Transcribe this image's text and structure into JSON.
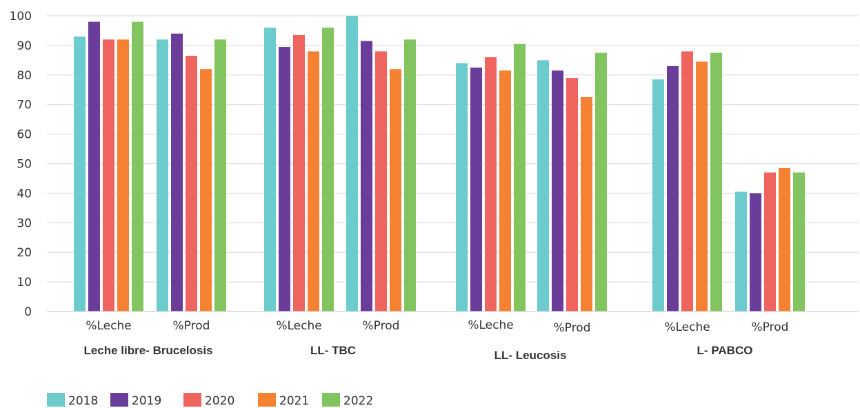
{
  "chart_data": {
    "type": "bar",
    "ylim": [
      0,
      100
    ],
    "yticks": [
      0,
      10,
      20,
      30,
      40,
      50,
      60,
      70,
      80,
      90,
      100
    ],
    "grid": true,
    "legend_position": "bottom-left",
    "groups": [
      {
        "label": "Leche libre- Brucelosis",
        "subcategories": [
          "%Leche",
          "%Prod"
        ]
      },
      {
        "label": "LL- TBC",
        "subcategories": [
          "%Leche",
          "%Prod"
        ]
      },
      {
        "label": "LL- Leucosis",
        "subcategories": [
          "%Leche",
          "%Prod"
        ]
      },
      {
        "label": "L- PABCO",
        "subcategories": [
          "%Leche",
          "%Prod"
        ]
      }
    ],
    "series": [
      {
        "name": "2018",
        "color": "#6ccbcd",
        "values": [
          93,
          92,
          96,
          100,
          84,
          85,
          78.5,
          40.5
        ]
      },
      {
        "name": "2019",
        "color": "#6a3d9a",
        "values": [
          98,
          94,
          89.5,
          91.5,
          82.5,
          81.5,
          83,
          40
        ]
      },
      {
        "name": "2020",
        "color": "#f0645f",
        "values": [
          92,
          86.5,
          93.5,
          88,
          86,
          79,
          88,
          47
        ]
      },
      {
        "name": "2021",
        "color": "#f58233",
        "values": [
          92,
          82,
          88,
          82,
          81.5,
          72.5,
          84.5,
          48.5
        ]
      },
      {
        "name": "2022",
        "color": "#82c45f",
        "values": [
          98,
          92,
          96,
          92,
          90.5,
          87.5,
          87.5,
          47
        ]
      }
    ]
  }
}
